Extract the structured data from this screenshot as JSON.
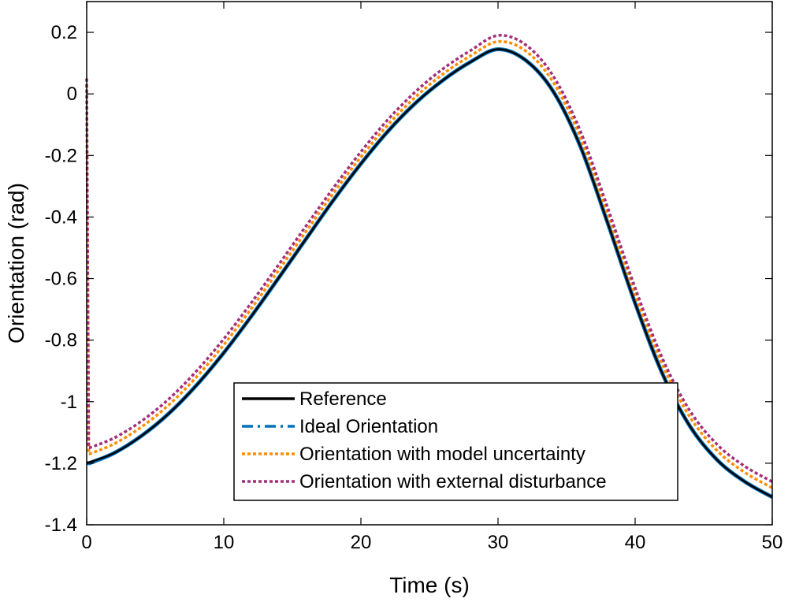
{
  "chart_data": {
    "type": "line",
    "title": "",
    "xlabel": "Time (s)",
    "ylabel": "Orientation (rad)",
    "xlim": [
      0,
      50
    ],
    "ylim": [
      -1.4,
      0.3
    ],
    "xticks": [
      0,
      10,
      20,
      30,
      40,
      50
    ],
    "yticks": [
      -1.4,
      -1.2,
      -1,
      -0.8,
      -0.6,
      -0.4,
      -0.2,
      0,
      0.2
    ],
    "xtick_labels": [
      "0",
      "10",
      "20",
      "30",
      "40",
      "50"
    ],
    "ytick_labels": [
      "-1.4",
      "-1.2",
      "-1",
      "-0.8",
      "-0.6",
      "-0.4",
      "-0.2",
      "0",
      "0.2"
    ],
    "grid": false,
    "legend_placement": "bottom-right",
    "x": [
      0,
      2,
      4,
      6,
      8,
      10,
      12,
      14,
      16,
      18,
      20,
      22,
      24,
      26,
      28,
      30,
      32,
      34,
      36,
      38,
      40,
      42,
      44,
      46,
      48,
      50
    ],
    "series": [
      {
        "name": "Reference",
        "color": "#000000",
        "style": "solid",
        "x": [
          0,
          2,
          4,
          6,
          8,
          10,
          12,
          14,
          16,
          18,
          20,
          22,
          24,
          26,
          28,
          30,
          32,
          34,
          36,
          38,
          40,
          42,
          44,
          46,
          48,
          50
        ],
        "values": [
          -1.2,
          -1.167,
          -1.111,
          -1.038,
          -0.947,
          -0.841,
          -0.723,
          -0.598,
          -0.471,
          -0.345,
          -0.227,
          -0.12,
          -0.029,
          0.045,
          0.104,
          0.145,
          0.11,
          0.01,
          -0.17,
          -0.42,
          -0.68,
          -0.91,
          -1.08,
          -1.19,
          -1.26,
          -1.31
        ]
      },
      {
        "name": "Ideal Orientation",
        "color": "#0072bd",
        "style": "dashdot",
        "x": [
          0,
          0.15,
          0.2,
          2,
          4,
          6,
          8,
          10,
          12,
          14,
          16,
          18,
          20,
          22,
          24,
          26,
          28,
          30,
          32,
          34,
          36,
          38,
          40,
          42,
          44,
          46,
          48,
          50
        ],
        "values": [
          -1.2,
          -1.2,
          -1.2,
          -1.167,
          -1.111,
          -1.038,
          -0.947,
          -0.841,
          -0.723,
          -0.598,
          -0.471,
          -0.345,
          -0.227,
          -0.12,
          -0.029,
          0.045,
          0.104,
          0.145,
          0.11,
          0.01,
          -0.17,
          -0.42,
          -0.68,
          -0.91,
          -1.08,
          -1.19,
          -1.26,
          -1.31
        ]
      },
      {
        "name": "Orientation with model uncertainty",
        "color": "#ff8c00",
        "style": "dotted",
        "x": [
          0,
          0.15,
          0.2,
          2,
          4,
          6,
          8,
          10,
          12,
          14,
          16,
          18,
          20,
          22,
          24,
          26,
          28,
          30,
          32,
          34,
          36,
          38,
          40,
          42,
          44,
          46,
          48,
          50
        ],
        "values": [
          0.03,
          -1.17,
          -1.17,
          -1.137,
          -1.082,
          -1.01,
          -0.92,
          -0.815,
          -0.698,
          -0.573,
          -0.447,
          -0.322,
          -0.205,
          -0.099,
          -0.009,
          0.065,
          0.124,
          0.17,
          0.14,
          0.04,
          -0.14,
          -0.39,
          -0.65,
          -0.88,
          -1.05,
          -1.16,
          -1.23,
          -1.28
        ]
      },
      {
        "name": "Orientation with external disturbance",
        "color": "#a2307a",
        "style": "dotted",
        "x": [
          0,
          0.15,
          0.2,
          2,
          4,
          6,
          8,
          10,
          12,
          14,
          16,
          18,
          20,
          22,
          24,
          26,
          28,
          30,
          32,
          34,
          36,
          38,
          40,
          42,
          44,
          46,
          48,
          50
        ],
        "values": [
          0.05,
          -1.15,
          -1.15,
          -1.118,
          -1.063,
          -0.991,
          -0.901,
          -0.796,
          -0.679,
          -0.555,
          -0.429,
          -0.305,
          -0.188,
          -0.082,
          0.008,
          0.082,
          0.141,
          0.19,
          0.16,
          0.06,
          -0.12,
          -0.37,
          -0.63,
          -0.86,
          -1.03,
          -1.14,
          -1.21,
          -1.26
        ]
      }
    ]
  }
}
